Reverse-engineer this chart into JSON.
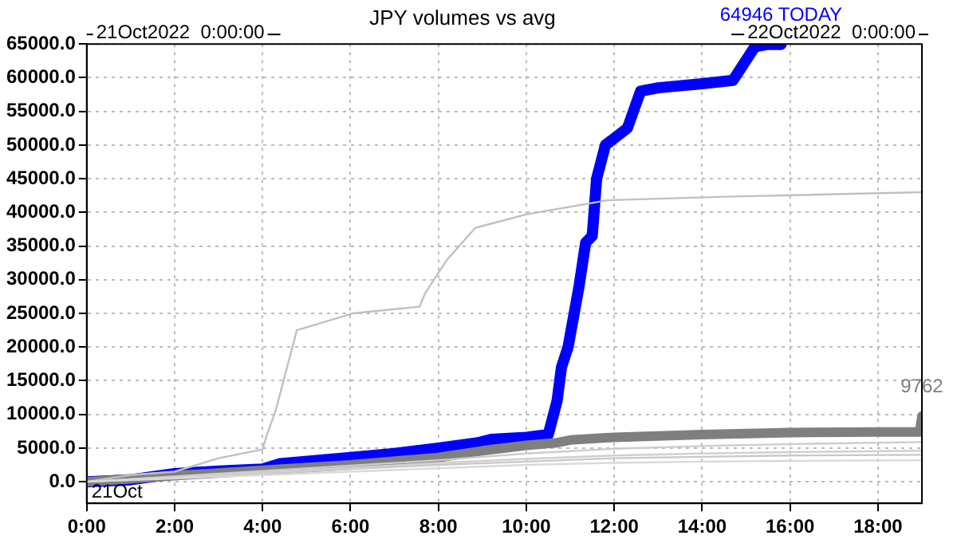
{
  "chart_data": {
    "type": "line",
    "title": "JPY volumes vs avg",
    "xlim": [
      0,
      19
    ],
    "xticks": [
      {
        "value": 0,
        "label": "0:00"
      },
      {
        "value": 2,
        "label": "2:00"
      },
      {
        "value": 4,
        "label": "4:00"
      },
      {
        "value": 6,
        "label": "6:00"
      },
      {
        "value": 8,
        "label": "8:00"
      },
      {
        "value": 10,
        "label": "10:00"
      },
      {
        "value": 12,
        "label": "12:00"
      },
      {
        "value": 14,
        "label": "14:00"
      },
      {
        "value": 16,
        "label": "16:00"
      },
      {
        "value": 18,
        "label": "18:00"
      }
    ],
    "ylim": [
      -3200,
      65000
    ],
    "yticks": [
      {
        "value": 0,
        "label": "0.0"
      },
      {
        "value": 5000,
        "label": "5000.0"
      },
      {
        "value": 10000,
        "label": "10000.0"
      },
      {
        "value": 15000,
        "label": "15000.0"
      },
      {
        "value": 20000,
        "label": "20000.0"
      },
      {
        "value": 25000,
        "label": "25000.0"
      },
      {
        "value": 30000,
        "label": "30000.0"
      },
      {
        "value": 35000,
        "label": "35000.0"
      },
      {
        "value": 40000,
        "label": "40000.0"
      },
      {
        "value": 45000,
        "label": "45000.0"
      },
      {
        "value": 50000,
        "label": "50000.0"
      },
      {
        "value": 55000,
        "label": "55000.0"
      },
      {
        "value": 60000,
        "label": "60000.0"
      },
      {
        "value": 65000,
        "label": "65000.0"
      }
    ],
    "grid": true,
    "legend": false,
    "marker": "none",
    "line_style": "solid",
    "series": [
      {
        "color": "#d9d9d9",
        "x": [
          0,
          2,
          4,
          6,
          8,
          10,
          12,
          14,
          16,
          19
        ],
        "values": [
          0,
          500,
          1000,
          1500,
          2000,
          2500,
          2800,
          3000,
          3100,
          3200
        ]
      },
      {
        "color": "#d0d0d0",
        "x": [
          0,
          2,
          4,
          6,
          8,
          10,
          12,
          14,
          16,
          19
        ],
        "values": [
          0,
          700,
          1400,
          2100,
          2800,
          3400,
          3900,
          4200,
          4400,
          4600
        ]
      },
      {
        "color": "#cccccc",
        "x": [
          0,
          2,
          4,
          6,
          8,
          10,
          12,
          14,
          16,
          19
        ],
        "values": [
          0,
          800,
          1600,
          2400,
          3200,
          4200,
          4900,
          5300,
          5600,
          5900
        ]
      },
      {
        "color": "#c8c8c8",
        "x": [
          0,
          2,
          4,
          6,
          8,
          10,
          12,
          14,
          16,
          19
        ],
        "values": [
          0,
          600,
          1200,
          1900,
          2500,
          3000,
          3500,
          3700,
          3900,
          4000
        ]
      },
      {
        "color": "#c0c0c0",
        "x": [
          0,
          1,
          2,
          3,
          4,
          4.1,
          4.3,
          4.78,
          6.05,
          7.57,
          7.7,
          8.2,
          8.84,
          10,
          11.85,
          14.4,
          19
        ],
        "values": [
          0,
          1000,
          1500,
          3500,
          4800,
          7000,
          10600,
          22500,
          25000,
          26000,
          28000,
          33000,
          37700,
          39700,
          41800,
          42300,
          43000
        ]
      },
      {
        "color": "#7f7f7f",
        "x": [
          0,
          2,
          4,
          6,
          8,
          9,
          10,
          10.7,
          11,
          12,
          14,
          16,
          18,
          18.95,
          19
        ],
        "values": [
          0,
          900,
          1700,
          2500,
          3600,
          4600,
          5400,
          5800,
          6200,
          6600,
          7000,
          7300,
          7400,
          7400,
          9762
        ]
      },
      {
        "color": "#0000ff",
        "x": [
          0,
          1,
          2,
          3,
          4,
          4.4,
          6,
          7,
          8,
          8.9,
          9.2,
          10,
          10.5,
          10.7,
          10.8,
          10.95,
          11.2,
          11.35,
          11.5,
          11.6,
          11.8,
          12.1,
          12.3,
          12.6,
          13,
          14,
          14.7,
          15.2,
          15.5,
          15.8
        ],
        "values": [
          0,
          300,
          1200,
          1600,
          1900,
          2700,
          3600,
          4200,
          5000,
          5800,
          6300,
          6600,
          7000,
          12000,
          17000,
          20000,
          29000,
          35500,
          36500,
          45000,
          50000,
          51500,
          52500,
          58000,
          58500,
          59100,
          59600,
          64600,
          64946,
          64946
        ]
      }
    ],
    "annotations": [
      "21Oct2022  0:00:00",
      "22Oct2022  0:00:00",
      "21Oct",
      {
        "text": "64946 TODAY",
        "x": 15.8,
        "y": 64946
      },
      {
        "text": "9762",
        "x": 19,
        "y": 9762
      }
    ]
  }
}
